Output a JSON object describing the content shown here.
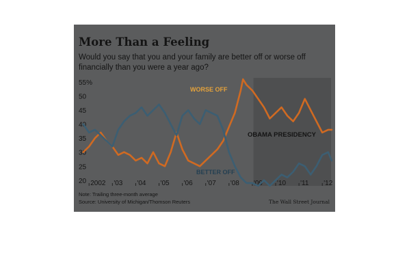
{
  "chart_data": {
    "type": "line",
    "title": "More Than a Feeling",
    "subtitle": "Would you say that you and your family are better off or worse off financially than you were a year ago?",
    "x_tick_labels": [
      "2002",
      "'03",
      "'04",
      "'05",
      "'06",
      "'07",
      "'08",
      "'09",
      "'10",
      "'11",
      "'12"
    ],
    "x_tick_years": [
      2002,
      2003,
      2004,
      2005,
      2006,
      2007,
      2008,
      2009,
      2010,
      2011,
      2012
    ],
    "xlim": [
      2001.7,
      2012.55
    ],
    "y_tick_labels": [
      "55%",
      "50",
      "45",
      "40",
      "35",
      "30",
      "25",
      "20"
    ],
    "y_tick_values": [
      55,
      50,
      45,
      40,
      35,
      30,
      25,
      20
    ],
    "ylim": [
      18,
      56
    ],
    "grid": false,
    "shaded_region": {
      "start": 2009.05,
      "end": 2012.55,
      "label": "OBAMA PRESIDENCY"
    },
    "series": [
      {
        "name": "WORSE OFF",
        "color": "#d06a22",
        "x": [
          2001.75,
          2002.0,
          2002.25,
          2002.5,
          2002.75,
          2003.0,
          2003.25,
          2003.5,
          2003.75,
          2004.0,
          2004.25,
          2004.5,
          2004.75,
          2005.0,
          2005.25,
          2005.5,
          2005.75,
          2006.0,
          2006.25,
          2006.5,
          2006.75,
          2007.0,
          2007.25,
          2007.5,
          2007.75,
          2008.0,
          2008.25,
          2008.5,
          2008.6,
          2008.75,
          2009.0,
          2009.25,
          2009.5,
          2009.75,
          2010.0,
          2010.25,
          2010.5,
          2010.75,
          2011.0,
          2011.25,
          2011.5,
          2011.75,
          2012.0,
          2012.25,
          2012.4
        ],
        "values": [
          30,
          32,
          35,
          37,
          34,
          32,
          29,
          30,
          29,
          27,
          28,
          26,
          30,
          26,
          25,
          30,
          37,
          31,
          27,
          26,
          25,
          27,
          29,
          31,
          34,
          39,
          44,
          52,
          56,
          54,
          52,
          49,
          46,
          42,
          44,
          46,
          43,
          41,
          44,
          49,
          45,
          41,
          37,
          38,
          38
        ]
      },
      {
        "name": "BETTER OFF",
        "color": "#3c5e72",
        "x": [
          2001.75,
          2002.0,
          2002.25,
          2002.5,
          2002.75,
          2003.0,
          2003.25,
          2003.5,
          2003.75,
          2004.0,
          2004.25,
          2004.5,
          2004.75,
          2005.0,
          2005.25,
          2005.5,
          2005.75,
          2006.0,
          2006.25,
          2006.5,
          2006.75,
          2007.0,
          2007.25,
          2007.5,
          2007.75,
          2008.0,
          2008.25,
          2008.5,
          2008.75,
          2009.0,
          2009.25,
          2009.5,
          2009.75,
          2010.0,
          2010.25,
          2010.5,
          2010.75,
          2011.0,
          2011.25,
          2011.5,
          2011.75,
          2012.0,
          2012.25,
          2012.4
        ],
        "values": [
          40,
          37,
          38,
          36,
          34,
          32,
          38,
          41,
          43,
          44,
          46,
          43,
          45,
          47,
          44,
          40,
          36,
          43,
          45,
          42,
          40,
          45,
          44,
          43,
          38,
          30,
          25,
          21,
          19,
          19,
          18,
          20,
          18,
          20,
          22,
          21,
          23,
          26,
          25,
          22,
          25,
          29,
          30,
          27
        ]
      }
    ],
    "annotations": [
      "WORSE OFF",
      "BETTER OFF",
      "OBAMA PRESIDENCY"
    ]
  },
  "footer": {
    "note": "Note: Trailing three-month average",
    "source": "Source: University of Michigan/Thomson Reuters",
    "credit": "The Wall Street Journal"
  },
  "colors": {
    "panel_background": "#5b5c5d",
    "shaded_region": "#4e4f50",
    "worse_off": "#d06a22",
    "better_off": "#3c5e72",
    "worse_off_label": "#e4a23b",
    "better_off_label": "#243f52",
    "text_dark": "#141414"
  }
}
